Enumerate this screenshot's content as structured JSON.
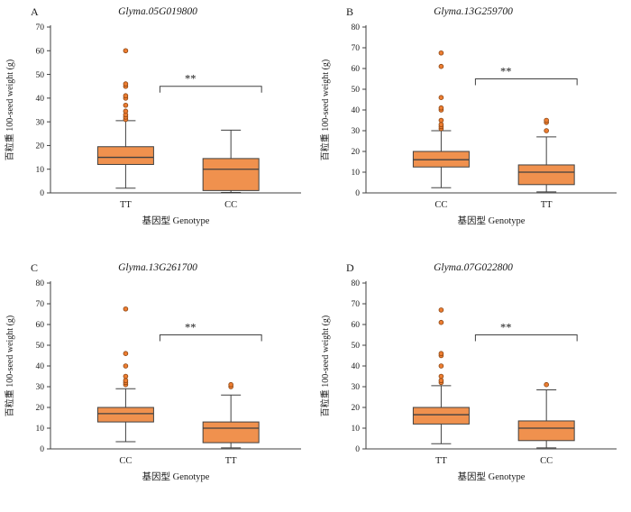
{
  "style": {
    "axis": "#404040",
    "text": "#1a1a1a",
    "box_fill": "#F0914E",
    "outlier_fill": "#ED7D31",
    "outlier_stroke": "#8a4513"
  },
  "chart_data": [
    {
      "type": "box",
      "panel_label": "A",
      "title": "Glyma.05G019800",
      "xlabel": "基因型 Genotype",
      "ylabel": "百粒重 100-seed weight (g)",
      "ylim": [
        0,
        70
      ],
      "ytick_step": 10,
      "grid": false,
      "significance": "**",
      "sig_y": 45,
      "categories": [
        "TT",
        "CC"
      ],
      "boxes": [
        {
          "category": "TT",
          "whisker_low": 2,
          "q1": 12,
          "median": 15,
          "q3": 19.5,
          "whisker_high": 30.5,
          "outliers": [
            31,
            32,
            33,
            34.5,
            37,
            40,
            41,
            45,
            46,
            60
          ]
        },
        {
          "category": "CC",
          "whisker_low": 0.2,
          "q1": 1,
          "median": 10,
          "q3": 14.5,
          "whisker_high": 26.5,
          "outliers": []
        }
      ]
    },
    {
      "type": "box",
      "panel_label": "B",
      "title": "Glyma.13G259700",
      "xlabel": "基因型 Genotype",
      "ylabel": "百粒重 100-seed weight (g)",
      "ylim": [
        0,
        80
      ],
      "ytick_step": 10,
      "grid": false,
      "significance": "**",
      "sig_y": 55,
      "categories": [
        "CC",
        "TT"
      ],
      "boxes": [
        {
          "category": "CC",
          "whisker_low": 2.5,
          "q1": 12.5,
          "median": 16,
          "q3": 20,
          "whisker_high": 30,
          "outliers": [
            31,
            32,
            33,
            35,
            40,
            41,
            46,
            61,
            67.5
          ]
        },
        {
          "category": "TT",
          "whisker_low": 0.5,
          "q1": 4,
          "median": 10,
          "q3": 13.5,
          "whisker_high": 27,
          "outliers": [
            30,
            34,
            35
          ]
        }
      ]
    },
    {
      "type": "box",
      "panel_label": "C",
      "title": "Glyma.13G261700",
      "xlabel": "基因型 Genotype",
      "ylabel": "百粒重 100-seed weight (g)",
      "ylim": [
        0,
        80
      ],
      "ytick_step": 10,
      "grid": false,
      "significance": "**",
      "sig_y": 55,
      "categories": [
        "CC",
        "TT"
      ],
      "boxes": [
        {
          "category": "CC",
          "whisker_low": 3.5,
          "q1": 13,
          "median": 17,
          "q3": 20,
          "whisker_high": 29,
          "outliers": [
            31,
            32,
            33,
            35,
            40,
            46,
            67.5
          ]
        },
        {
          "category": "TT",
          "whisker_low": 0.5,
          "q1": 3,
          "median": 10,
          "q3": 13,
          "whisker_high": 26,
          "outliers": [
            30,
            31
          ]
        }
      ]
    },
    {
      "type": "box",
      "panel_label": "D",
      "title": "Glyma.07G022800",
      "xlabel": "基因型 Genotype",
      "ylabel": "百粒重 100-seed weight (g)",
      "ylim": [
        0,
        80
      ],
      "ytick_step": 10,
      "grid": false,
      "significance": "**",
      "sig_y": 55,
      "categories": [
        "TT",
        "CC"
      ],
      "boxes": [
        {
          "category": "TT",
          "whisker_low": 2.5,
          "q1": 12,
          "median": 16.5,
          "q3": 20,
          "whisker_high": 30.5,
          "outliers": [
            32,
            33,
            35,
            40,
            45,
            46,
            61,
            67
          ]
        },
        {
          "category": "CC",
          "whisker_low": 0.5,
          "q1": 4,
          "median": 10,
          "q3": 13.5,
          "whisker_high": 28.5,
          "outliers": [
            31
          ]
        }
      ]
    }
  ]
}
